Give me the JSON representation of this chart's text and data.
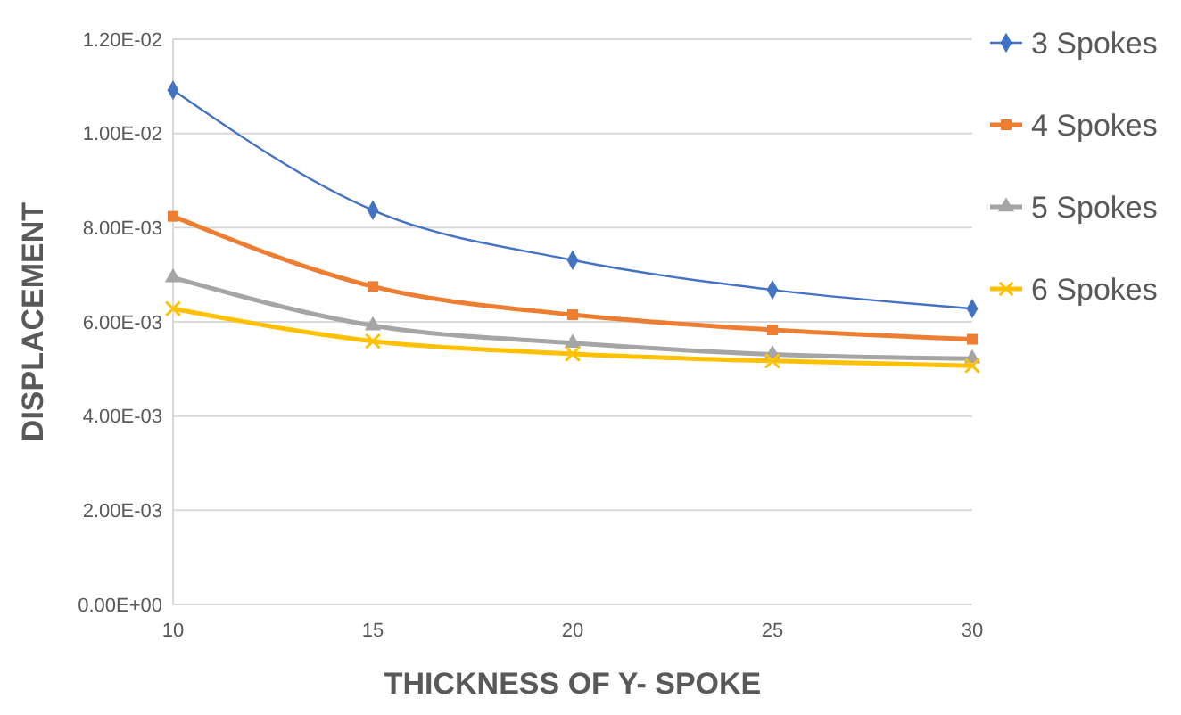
{
  "chart_data": {
    "type": "line",
    "xlabel": "THICKNESS OF Y- SPOKE",
    "ylabel": "DISPLACEMENT",
    "x": [
      10,
      15,
      20,
      25,
      30
    ],
    "series": [
      {
        "name": "3 Spokes",
        "color": "#4472c4",
        "marker": "diamond",
        "values": [
          0.01092,
          0.00837,
          0.00731,
          0.00668,
          0.00628
        ]
      },
      {
        "name": "4 Spokes",
        "color": "#ed7d31",
        "marker": "square",
        "values": [
          0.00824,
          0.00675,
          0.00615,
          0.00583,
          0.00563
        ]
      },
      {
        "name": "5 Spokes",
        "color": "#a5a5a5",
        "marker": "triangle",
        "values": [
          0.00694,
          0.00592,
          0.00555,
          0.00531,
          0.00522
        ]
      },
      {
        "name": "6 Spokes",
        "color": "#ffc000",
        "marker": "cross",
        "values": [
          0.00628,
          0.00559,
          0.00532,
          0.00517,
          0.00507
        ]
      }
    ],
    "xlim": [
      10,
      30
    ],
    "xticks": [
      10,
      15,
      20,
      25,
      30
    ],
    "ylim": [
      0,
      0.012
    ],
    "yticks": [
      {
        "value": 0,
        "label": "0.00E+00"
      },
      {
        "value": 0.002,
        "label": "2.00E-03"
      },
      {
        "value": 0.004,
        "label": "4.00E-03"
      },
      {
        "value": 0.006,
        "label": "6.00E-03"
      },
      {
        "value": 0.008,
        "label": "8.00E-03"
      },
      {
        "value": 0.01,
        "label": "1.00E-02"
      },
      {
        "value": 0.012,
        "label": "1.20E-02"
      }
    ],
    "grid": "y",
    "legend": "right",
    "line_style": "solid"
  }
}
